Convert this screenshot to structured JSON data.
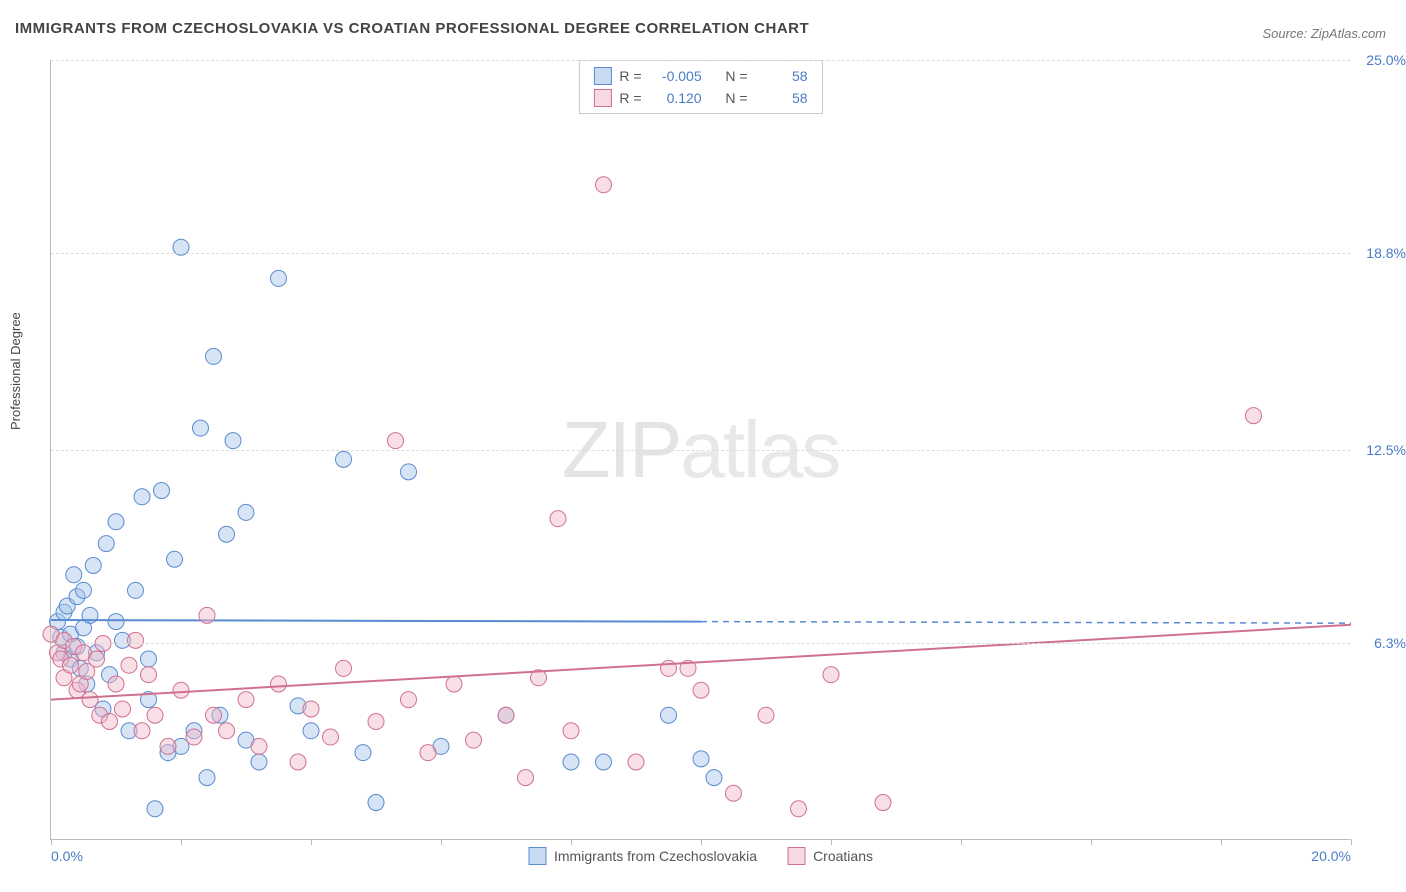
{
  "title": "IMMIGRANTS FROM CZECHOSLOVAKIA VS CROATIAN PROFESSIONAL DEGREE CORRELATION CHART",
  "source_label": "Source: ZipAtlas.com",
  "y_axis_label": "Professional Degree",
  "watermark_1": "ZIP",
  "watermark_2": "atlas",
  "chart": {
    "type": "scatter",
    "background_color": "#ffffff",
    "grid_color": "#dddddd",
    "axis_color": "#bbbbbb",
    "xlim": [
      0,
      20
    ],
    "ylim": [
      0,
      25
    ],
    "x_tick_positions": [
      0,
      2,
      4,
      6,
      8,
      10,
      12,
      14,
      16,
      18,
      20
    ],
    "x_tick_labels": {
      "0": "0.0%",
      "20": "20.0%"
    },
    "y_ticks": [
      {
        "v": 6.3,
        "label": "6.3%"
      },
      {
        "v": 12.5,
        "label": "12.5%"
      },
      {
        "v": 18.8,
        "label": "18.8%"
      },
      {
        "v": 25.0,
        "label": "25.0%"
      }
    ],
    "marker_radius": 8,
    "marker_opacity": 0.45,
    "line_width": 2,
    "series": [
      {
        "name": "Immigrants from Czechoslovakia",
        "name_short": "blue",
        "color_fill": "#a5c4e8",
        "color_stroke": "#5a8bd0",
        "r_value": "-0.005",
        "n_value": "58",
        "trend": {
          "x1": 0,
          "y1": 7.05,
          "x2": 10,
          "y2": 7.0,
          "dash_x2": 20,
          "dash_y2": 6.95
        },
        "points": [
          [
            0.1,
            7.0
          ],
          [
            0.15,
            6.5
          ],
          [
            0.2,
            7.3
          ],
          [
            0.2,
            6.0
          ],
          [
            0.25,
            7.5
          ],
          [
            0.3,
            6.6
          ],
          [
            0.3,
            5.8
          ],
          [
            0.35,
            8.5
          ],
          [
            0.4,
            6.2
          ],
          [
            0.4,
            7.8
          ],
          [
            0.45,
            5.5
          ],
          [
            0.5,
            8.0
          ],
          [
            0.5,
            6.8
          ],
          [
            0.55,
            5.0
          ],
          [
            0.6,
            7.2
          ],
          [
            0.65,
            8.8
          ],
          [
            0.7,
            6.0
          ],
          [
            0.8,
            4.2
          ],
          [
            0.85,
            9.5
          ],
          [
            0.9,
            5.3
          ],
          [
            1.0,
            7.0
          ],
          [
            1.0,
            10.2
          ],
          [
            1.1,
            6.4
          ],
          [
            1.2,
            3.5
          ],
          [
            1.3,
            8.0
          ],
          [
            1.4,
            11.0
          ],
          [
            1.5,
            4.5
          ],
          [
            1.5,
            5.8
          ],
          [
            1.6,
            1.0
          ],
          [
            1.7,
            11.2
          ],
          [
            1.8,
            2.8
          ],
          [
            1.9,
            9.0
          ],
          [
            2.0,
            3.0
          ],
          [
            2.0,
            19.0
          ],
          [
            2.2,
            3.5
          ],
          [
            2.3,
            13.2
          ],
          [
            2.4,
            2.0
          ],
          [
            2.5,
            15.5
          ],
          [
            2.6,
            4.0
          ],
          [
            2.7,
            9.8
          ],
          [
            2.8,
            12.8
          ],
          [
            3.0,
            3.2
          ],
          [
            3.0,
            10.5
          ],
          [
            3.2,
            2.5
          ],
          [
            3.5,
            18.0
          ],
          [
            3.8,
            4.3
          ],
          [
            4.0,
            3.5
          ],
          [
            4.5,
            12.2
          ],
          [
            4.8,
            2.8
          ],
          [
            5.0,
            1.2
          ],
          [
            5.5,
            11.8
          ],
          [
            6.0,
            3.0
          ],
          [
            7.0,
            4.0
          ],
          [
            8.0,
            2.5
          ],
          [
            8.5,
            2.5
          ],
          [
            9.5,
            4.0
          ],
          [
            10.0,
            2.6
          ],
          [
            10.2,
            2.0
          ]
        ]
      },
      {
        "name": "Croatians",
        "name_short": "pink",
        "color_fill": "#f0b8c8",
        "color_stroke": "#d07090",
        "r_value": "0.120",
        "n_value": "58",
        "trend": {
          "x1": 0,
          "y1": 4.5,
          "x2": 20,
          "y2": 6.9
        },
        "points": [
          [
            0.0,
            6.6
          ],
          [
            0.1,
            6.0
          ],
          [
            0.15,
            5.8
          ],
          [
            0.2,
            6.4
          ],
          [
            0.2,
            5.2
          ],
          [
            0.3,
            5.6
          ],
          [
            0.35,
            6.2
          ],
          [
            0.4,
            4.8
          ],
          [
            0.45,
            5.0
          ],
          [
            0.5,
            6.0
          ],
          [
            0.55,
            5.4
          ],
          [
            0.6,
            4.5
          ],
          [
            0.7,
            5.8
          ],
          [
            0.75,
            4.0
          ],
          [
            0.8,
            6.3
          ],
          [
            0.9,
            3.8
          ],
          [
            1.0,
            5.0
          ],
          [
            1.1,
            4.2
          ],
          [
            1.2,
            5.6
          ],
          [
            1.3,
            6.4
          ],
          [
            1.4,
            3.5
          ],
          [
            1.5,
            5.3
          ],
          [
            1.6,
            4.0
          ],
          [
            1.8,
            3.0
          ],
          [
            2.0,
            4.8
          ],
          [
            2.2,
            3.3
          ],
          [
            2.4,
            7.2
          ],
          [
            2.5,
            4.0
          ],
          [
            2.7,
            3.5
          ],
          [
            3.0,
            4.5
          ],
          [
            3.2,
            3.0
          ],
          [
            3.5,
            5.0
          ],
          [
            3.8,
            2.5
          ],
          [
            4.0,
            4.2
          ],
          [
            4.3,
            3.3
          ],
          [
            4.5,
            5.5
          ],
          [
            5.0,
            3.8
          ],
          [
            5.3,
            12.8
          ],
          [
            5.5,
            4.5
          ],
          [
            5.8,
            2.8
          ],
          [
            6.2,
            5.0
          ],
          [
            6.5,
            3.2
          ],
          [
            7.0,
            4.0
          ],
          [
            7.3,
            2.0
          ],
          [
            7.5,
            5.2
          ],
          [
            7.8,
            10.3
          ],
          [
            8.0,
            3.5
          ],
          [
            8.5,
            21.0
          ],
          [
            9.0,
            2.5
          ],
          [
            9.5,
            5.5
          ],
          [
            10.0,
            4.8
          ],
          [
            10.5,
            1.5
          ],
          [
            11.0,
            4.0
          ],
          [
            11.5,
            1.0
          ],
          [
            12.0,
            5.3
          ],
          [
            12.8,
            1.2
          ],
          [
            18.5,
            13.6
          ],
          [
            9.8,
            5.5
          ]
        ]
      }
    ]
  },
  "legend_top": {
    "r_label": "R =",
    "n_label": "N ="
  },
  "bottom_legend": [
    {
      "swatch": "blue",
      "label": "Immigrants from Czechoslovakia"
    },
    {
      "swatch": "pink",
      "label": "Croatians"
    }
  ]
}
